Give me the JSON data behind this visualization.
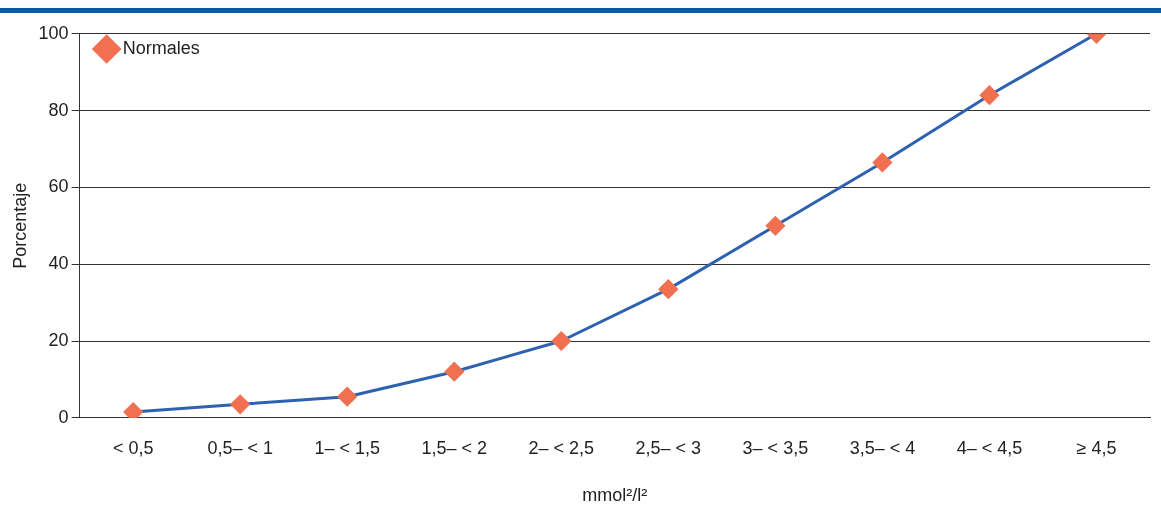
{
  "chart_data": {
    "type": "line",
    "ylabel": "Porcentaje",
    "xlabel": "mmol²/l²",
    "categories": [
      "< 0,5",
      "0,5– < 1",
      "1– < 1,5",
      "1,5– < 2",
      "2– < 2,5",
      "2,5– < 3",
      "3– < 3,5",
      "3,5– < 4",
      "4– < 4,5",
      "≥ 4,5"
    ],
    "series": [
      {
        "name": "Normales",
        "color": "#2e62b0",
        "colors": [
          "#f07050",
          "#f07050",
          "#f07050",
          "#f07050",
          "#f07050",
          "#f07050",
          "#f07050",
          "#f07050",
          "#f07050",
          "#f07050"
        ],
        "values": [
          1.5,
          3.5,
          5.5,
          12,
          20,
          33.5,
          50,
          66.5,
          84,
          100
        ]
      }
    ],
    "ylim": [
      0,
      100
    ],
    "yticks": [
      0,
      20,
      40,
      60,
      80,
      100
    ],
    "grid": "y",
    "legend": "top left",
    "marker": "diamond",
    "line_style": "solid"
  }
}
